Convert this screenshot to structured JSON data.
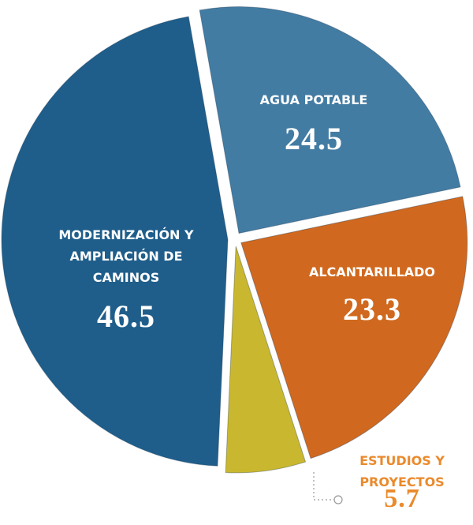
{
  "chart_data": {
    "type": "pie",
    "categories": [
      "AGUA POTABLE",
      "ALCANTARILLADO",
      "ESTUDIOS Y PROYECTOS",
      "MODERNIZACIÓN Y AMPLIACIÓN DE CAMINOS"
    ],
    "values": [
      24.5,
      23.3,
      5.7,
      46.5
    ],
    "colors": [
      "#437ca3",
      "#d0691f",
      "#c9b82f",
      "#1f5e8a"
    ]
  }
}
